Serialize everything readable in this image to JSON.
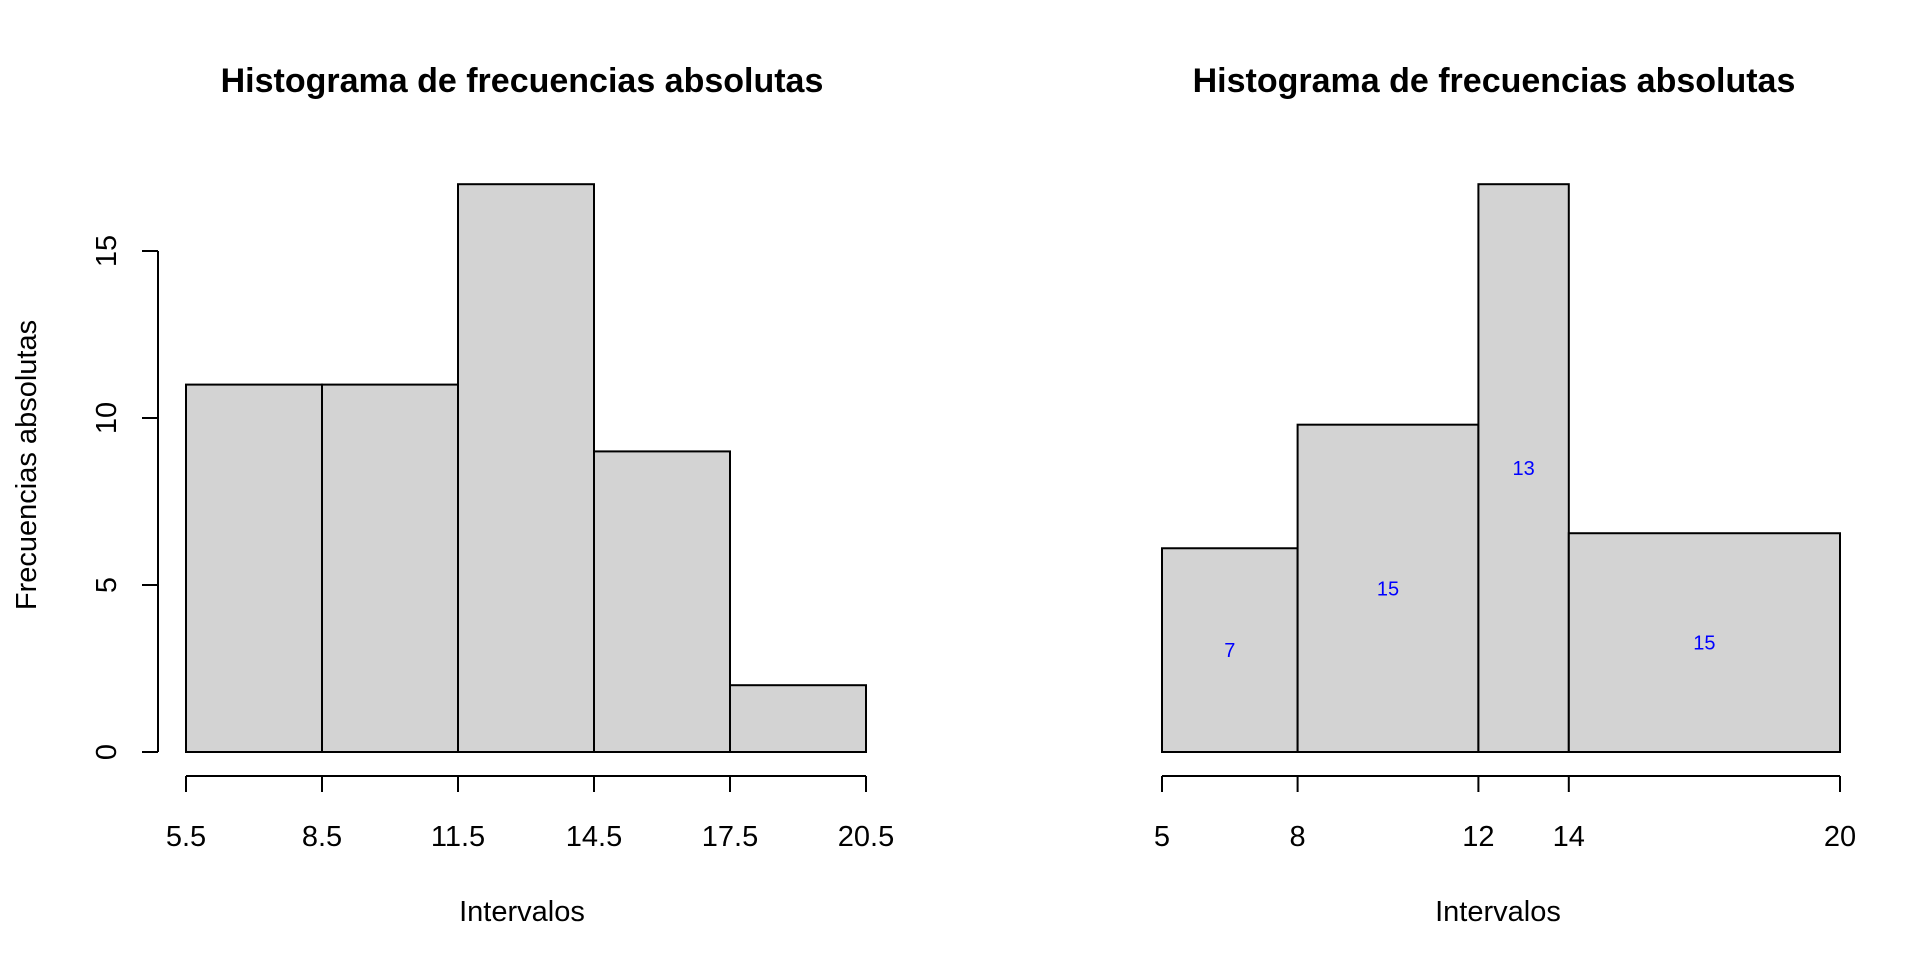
{
  "chart_data": [
    {
      "type": "bar",
      "title": "Histograma de frecuencias absolutas",
      "xlabel": "Intervalos",
      "ylabel": "Frecuencias absolutas",
      "breaks": [
        5.5,
        8.5,
        11.5,
        14.5,
        17.5,
        20.5
      ],
      "x_tick_labels": [
        "5.5",
        "8.5",
        "11.5",
        "14.5",
        "17.5",
        "20.5"
      ],
      "values": [
        11,
        11,
        17,
        9,
        2
      ],
      "ylim": [
        0,
        17
      ],
      "y_ticks": [
        0,
        5,
        10,
        15
      ],
      "y_tick_labels": [
        "0",
        "5",
        "10",
        "15"
      ],
      "bar_color": "#d3d3d3",
      "grid": false
    },
    {
      "type": "bar",
      "title": "Histograma de frecuencias absolutas",
      "xlabel": "Intervalos",
      "ylabel": "",
      "breaks": [
        5,
        8,
        12,
        14,
        20
      ],
      "x_tick_labels": [
        "5",
        "8",
        "12",
        "14",
        "20"
      ],
      "values": [
        6.1,
        9.8,
        17,
        6.55
      ],
      "labels": [
        "7",
        "15",
        "13",
        "15"
      ],
      "ylim": [
        0,
        17
      ],
      "bar_color": "#d3d3d3",
      "label_color": "#0000ff",
      "grid": false
    }
  ]
}
